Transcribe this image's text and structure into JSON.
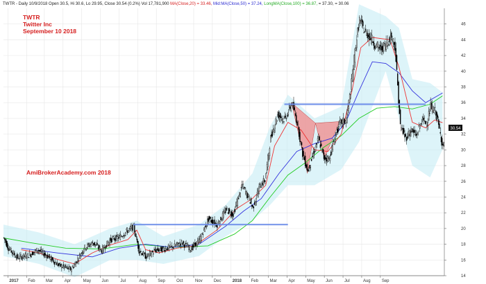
{
  "header": {
    "parts": [
      {
        "text": "TWTR - Daily 10/9/2018 Open 30.5, Hi 30.6, Lo 29.95, Close 30.54 (0.2%) Vol 17,781,900 ",
        "color": "#222222"
      },
      {
        "text": "MA(Close,20) = 33.46, ",
        "color": "#d62020"
      },
      {
        "text": "Mid:MA(Close,50) = 37.24, ",
        "color": "#2a2ad0"
      },
      {
        "text": "LongMA(Close,100) = 36.87, ",
        "color": "#22aa22"
      },
      {
        "text": "= 37.30, ",
        "color": "#222222"
      },
      {
        "text": "= 30.06",
        "color": "#222222"
      }
    ]
  },
  "title_block": {
    "symbol": "TWTR",
    "company": "Twitter Inc",
    "date": "September 10 2018"
  },
  "watermark": "AmiBrokerAcademy.com 2018",
  "last_price_badge": "30.54",
  "colors": {
    "up_candle": "#ffffff",
    "down_candle": "#000000",
    "ma20": "#ee3333",
    "ma50": "#3333dd",
    "ma100": "#22cc22",
    "band": "#c6ecf5",
    "support_line": "#6a8ce8",
    "pattern_fill": "#f08a8a",
    "title_red": "#d62020",
    "grid": "#e6e6e6"
  },
  "chart_data": {
    "type": "candlestick",
    "ylim": [
      14,
      48
    ],
    "y_ticks": [
      14,
      16,
      18,
      20,
      22,
      24,
      26,
      28,
      30,
      32,
      34,
      36,
      38,
      40,
      42,
      44,
      46
    ],
    "x_ticks": [
      "2017",
      "Feb",
      "Mar",
      "Apr",
      "May",
      "Jun",
      "Jul",
      "Aug",
      "Sep",
      "Oct",
      "Nov",
      "Dec",
      "2018",
      "Feb",
      "Mar",
      "Apr",
      "May",
      "Jun",
      "Jul",
      "Aug",
      "Sep"
    ],
    "price_path": [
      [
        0,
        18.8
      ],
      [
        5,
        17.5
      ],
      [
        15,
        16.3
      ],
      [
        28,
        16.6
      ],
      [
        38,
        17.3
      ],
      [
        50,
        16.4
      ],
      [
        62,
        15.3
      ],
      [
        75,
        14.8
      ],
      [
        80,
        15.5
      ],
      [
        90,
        17.5
      ],
      [
        100,
        18.2
      ],
      [
        110,
        17.2
      ],
      [
        120,
        18.6
      ],
      [
        130,
        18.9
      ],
      [
        140,
        19.8
      ],
      [
        146,
        20.2
      ],
      [
        152,
        17.2
      ],
      [
        160,
        16.4
      ],
      [
        170,
        17.2
      ],
      [
        180,
        17.4
      ],
      [
        190,
        17.7
      ],
      [
        200,
        18.2
      ],
      [
        210,
        17.4
      ],
      [
        220,
        18.5
      ],
      [
        230,
        21.2
      ],
      [
        240,
        20.5
      ],
      [
        250,
        22.4
      ],
      [
        258,
        21.8
      ],
      [
        268,
        25.5
      ],
      [
        275,
        24.0
      ],
      [
        280,
        22.6
      ],
      [
        288,
        25.5
      ],
      [
        294,
        26.2
      ],
      [
        300,
        31.5
      ],
      [
        308,
        34.5
      ],
      [
        316,
        33.8
      ],
      [
        324,
        36.0
      ],
      [
        330,
        33.5
      ],
      [
        336,
        29.5
      ],
      [
        342,
        27.3
      ],
      [
        348,
        29.5
      ],
      [
        354,
        31.4
      ],
      [
        360,
        29.0
      ],
      [
        366,
        28.9
      ],
      [
        372,
        31.5
      ],
      [
        378,
        33.4
      ],
      [
        385,
        33.8
      ],
      [
        390,
        37.5
      ],
      [
        396,
        43.5
      ],
      [
        400,
        46.5
      ],
      [
        406,
        45.0
      ],
      [
        412,
        44.4
      ],
      [
        418,
        43.3
      ],
      [
        424,
        42.8
      ],
      [
        430,
        43.5
      ],
      [
        436,
        44.5
      ],
      [
        440,
        43.2
      ],
      [
        446,
        33.0
      ],
      [
        452,
        31.5
      ],
      [
        458,
        32.5
      ],
      [
        464,
        31.8
      ],
      [
        470,
        33.8
      ],
      [
        476,
        33.5
      ],
      [
        480,
        35.5
      ],
      [
        486,
        34.8
      ],
      [
        490,
        32.5
      ],
      [
        494,
        30.5
      ]
    ],
    "ma20": [
      [
        20,
        17.3
      ],
      [
        40,
        16.9
      ],
      [
        60,
        16.1
      ],
      [
        80,
        15.5
      ],
      [
        100,
        16.9
      ],
      [
        120,
        17.9
      ],
      [
        140,
        18.6
      ],
      [
        150,
        19.8
      ],
      [
        160,
        17.3
      ],
      [
        175,
        16.9
      ],
      [
        195,
        17.5
      ],
      [
        215,
        17.8
      ],
      [
        240,
        19.8
      ],
      [
        262,
        22.5
      ],
      [
        280,
        23.8
      ],
      [
        295,
        25.5
      ],
      [
        305,
        30.5
      ],
      [
        320,
        33.5
      ],
      [
        335,
        32.5
      ],
      [
        350,
        30.0
      ],
      [
        365,
        29.8
      ],
      [
        380,
        32.0
      ],
      [
        392,
        37.5
      ],
      [
        402,
        43.0
      ],
      [
        415,
        44.3
      ],
      [
        435,
        44.0
      ],
      [
        445,
        40.5
      ],
      [
        460,
        33.5
      ],
      [
        475,
        32.8
      ],
      [
        485,
        33.8
      ],
      [
        494,
        33.46
      ]
    ],
    "ma50": [
      [
        20,
        17.5
      ],
      [
        60,
        16.9
      ],
      [
        100,
        16.4
      ],
      [
        130,
        17.5
      ],
      [
        160,
        18.0
      ],
      [
        190,
        17.6
      ],
      [
        220,
        18.0
      ],
      [
        250,
        20.3
      ],
      [
        270,
        22.2
      ],
      [
        290,
        23.8
      ],
      [
        310,
        27.0
      ],
      [
        330,
        29.8
      ],
      [
        350,
        30.8
      ],
      [
        370,
        31.5
      ],
      [
        385,
        33.5
      ],
      [
        400,
        37.5
      ],
      [
        415,
        41.2
      ],
      [
        430,
        41.0
      ],
      [
        445,
        39.8
      ],
      [
        460,
        37.5
      ],
      [
        475,
        36.0
      ],
      [
        494,
        37.24
      ]
    ],
    "ma100": [
      [
        0,
        18.8
      ],
      [
        30,
        18.2
      ],
      [
        70,
        17.5
      ],
      [
        110,
        17.4
      ],
      [
        150,
        18.0
      ],
      [
        190,
        17.6
      ],
      [
        230,
        17.8
      ],
      [
        260,
        19.3
      ],
      [
        280,
        21.0
      ],
      [
        300,
        24.0
      ],
      [
        320,
        26.8
      ],
      [
        340,
        28.4
      ],
      [
        360,
        30.3
      ],
      [
        380,
        31.8
      ],
      [
        400,
        34.0
      ],
      [
        420,
        35.3
      ],
      [
        440,
        35.5
      ],
      [
        460,
        35.2
      ],
      [
        480,
        35.8
      ],
      [
        494,
        36.87
      ]
    ],
    "band_upper": [
      [
        0,
        20.5
      ],
      [
        40,
        19.5
      ],
      [
        80,
        18.0
      ],
      [
        120,
        20.0
      ],
      [
        150,
        21.0
      ],
      [
        180,
        19.0
      ],
      [
        220,
        20.5
      ],
      [
        250,
        23.0
      ],
      [
        280,
        27.0
      ],
      [
        300,
        33.0
      ],
      [
        320,
        37.0
      ],
      [
        350,
        34.0
      ],
      [
        380,
        35.5
      ],
      [
        400,
        48.5
      ],
      [
        430,
        47.0
      ],
      [
        445,
        45.5
      ],
      [
        460,
        39.0
      ],
      [
        480,
        38.5
      ],
      [
        494,
        37.3
      ]
    ],
    "band_lower": [
      [
        0,
        16.5
      ],
      [
        40,
        15.5
      ],
      [
        80,
        13.8
      ],
      [
        120,
        16.0
      ],
      [
        150,
        16.0
      ],
      [
        180,
        15.5
      ],
      [
        220,
        16.5
      ],
      [
        250,
        19.0
      ],
      [
        280,
        21.0
      ],
      [
        300,
        23.0
      ],
      [
        320,
        25.5
      ],
      [
        350,
        25.5
      ],
      [
        380,
        27.5
      ],
      [
        400,
        31.0
      ],
      [
        430,
        40.0
      ],
      [
        445,
        34.0
      ],
      [
        460,
        28.0
      ],
      [
        480,
        26.5
      ],
      [
        494,
        30.06
      ]
    ],
    "support_lines": [
      {
        "x0": 146,
        "x1": 320,
        "y": 20.5
      },
      {
        "x0": 316,
        "x1": 475,
        "y": 35.8
      }
    ],
    "harmonic_pattern": [
      [
        324,
        36.0
      ],
      [
        342,
        27.0
      ],
      [
        351,
        33.4
      ],
      [
        361,
        28.9
      ],
      [
        378,
        33.6
      ]
    ],
    "x_tick_days": [
      0,
      21,
      41,
      62,
      83,
      104,
      125,
      146,
      167,
      188,
      209,
      230,
      251,
      272,
      293,
      314,
      335,
      356,
      377,
      398,
      419,
      440,
      461,
      482
    ],
    "x_tick_index": [
      5,
      26,
      46,
      67,
      88,
      109,
      130,
      151,
      172,
      193,
      214,
      235,
      256,
      277,
      298,
      319,
      340,
      361,
      382,
      403,
      424
    ]
  }
}
